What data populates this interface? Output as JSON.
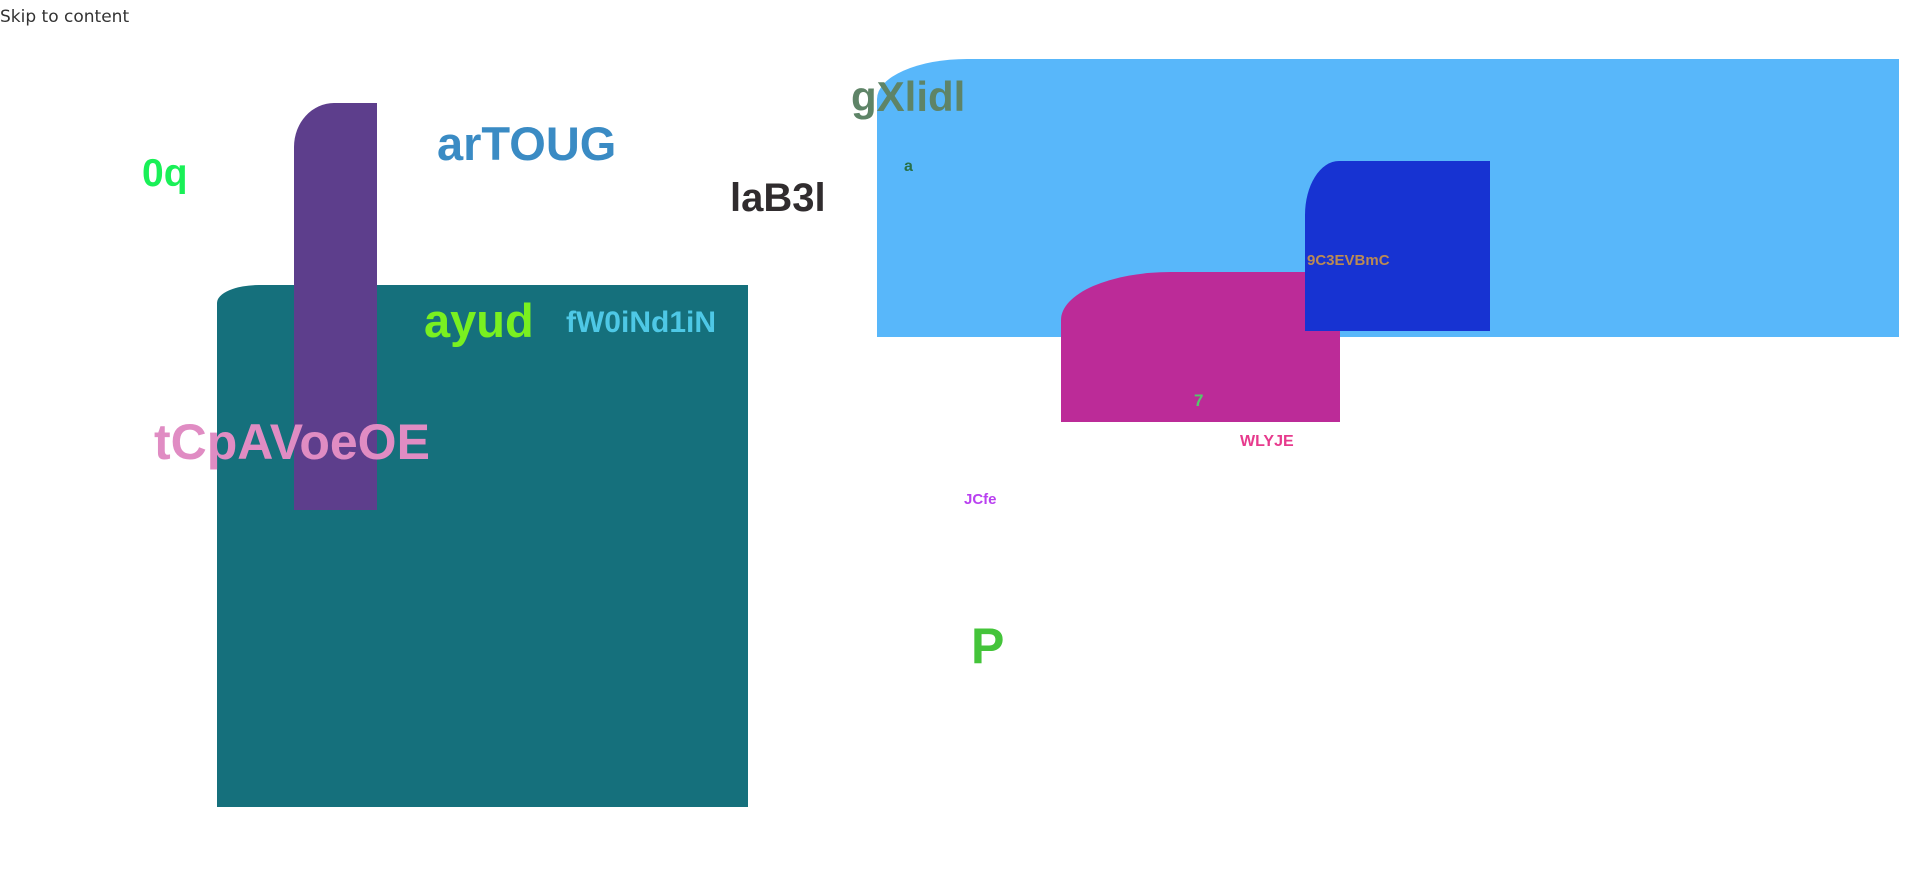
{
  "corner": {
    "text": "Skip to content"
  },
  "shapes": {
    "teal": {
      "color": "#15707c"
    },
    "purple": {
      "color": "#5d3e8c"
    },
    "sky": {
      "color": "#58b7fa"
    },
    "blue": {
      "color": "#1733d2"
    },
    "magenta": {
      "color": "#bc2b98"
    }
  },
  "labels": [
    {
      "key": "0q",
      "text": "0q",
      "color": "#19f057"
    },
    {
      "key": "artoug",
      "text": "arTOUG",
      "color": "#3a8bc4"
    },
    {
      "key": "lab3l",
      "text": "laB3l",
      "color": "#302c2e"
    },
    {
      "key": "gxlidl",
      "text": "gXlidl",
      "color": "#5e8467"
    },
    {
      "key": "a",
      "text": "a",
      "color": "#287049"
    },
    {
      "key": "ayud",
      "text": "ayud",
      "color": "#79f020"
    },
    {
      "key": "fw0",
      "text": "fW0iNd1iN",
      "color": "#4ec8e6"
    },
    {
      "key": "tcp",
      "text": "tCpAVoeOE",
      "color": "#e08cc3"
    },
    {
      "key": "9c3",
      "text": "9C3EVBmC",
      "color": "#ba8a54"
    },
    {
      "key": "7",
      "text": "7",
      "color": "#55c86b"
    },
    {
      "key": "wlyje",
      "text": "WLYJE",
      "color": "#e73a8d"
    },
    {
      "key": "jcfe",
      "text": "JCfe",
      "color": "#b940f0"
    },
    {
      "key": "p",
      "text": "P",
      "color": "#44c43a"
    }
  ]
}
